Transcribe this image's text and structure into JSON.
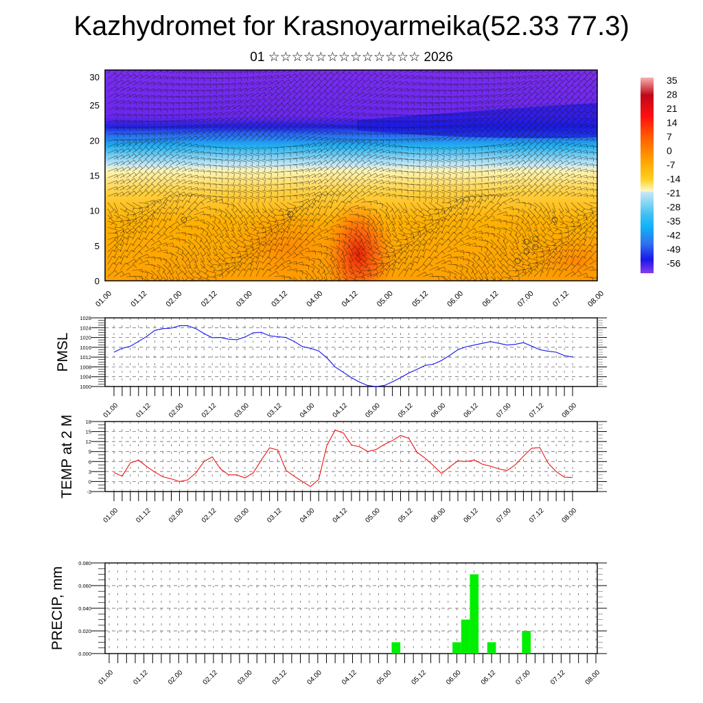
{
  "title": "Kazhydromet for Krasnoyarmeika(52.33 77.3)",
  "subtitle": "01 ☆☆☆☆☆☆☆☆☆☆☆☆☆ 2026",
  "time_labels": [
    "01.00",
    "01.12",
    "02.00",
    "02.12",
    "03.00",
    "03.12",
    "04.00",
    "04.12",
    "05.00",
    "05.12",
    "06.00",
    "06.12",
    "07.00",
    "07.12",
    "08.00"
  ],
  "chart_data": [
    {
      "type": "heatmap",
      "name": "vertical cross-section temperature with wind barbs",
      "ylabel": "",
      "ylim": [
        0,
        30
      ],
      "yticks": [
        0,
        5,
        10,
        15,
        20,
        25,
        30
      ],
      "xticks": [
        "01.00",
        "01.12",
        "02.00",
        "02.12",
        "03.00",
        "03.12",
        "04.00",
        "04.12",
        "05.00",
        "05.12",
        "06.00",
        "06.12",
        "07.00",
        "07.12",
        "08.00"
      ],
      "colorbar": {
        "labels": [
          "35",
          "28",
          "21",
          "14",
          "7",
          "0",
          "-7",
          "-14",
          "-21",
          "-28",
          "-35",
          "-42",
          "-49",
          "-56"
        ],
        "colors": [
          "#f4a0a0",
          "#c80018",
          "#e81010",
          "#ff3010",
          "#ff6a00",
          "#ffa000",
          "#ffd040",
          "#fff8c0",
          "#b8e0f0",
          "#60c8f0",
          "#10b8f8",
          "#3080f0",
          "#2040e8",
          "#7028f0"
        ]
      }
    },
    {
      "type": "line",
      "name": "PMSL",
      "ylabel": "PMSL",
      "ylim": [
        1000,
        1028
      ],
      "yticks": [
        1000,
        1004,
        1008,
        1012,
        1016,
        1020,
        1024,
        1028
      ],
      "ytick_labels": [
        "1000",
        "1004",
        "1008",
        "1012",
        "1016",
        "1020",
        "1024",
        "1028"
      ],
      "color": "#1010ee",
      "step_hours": 3,
      "values": [
        1014.0,
        1015.6,
        1016.4,
        1018.4,
        1020.4,
        1022.9,
        1023.6,
        1023.8,
        1024.8,
        1024.8,
        1023.6,
        1021.6,
        1019.9,
        1020.0,
        1019.3,
        1019.1,
        1020.2,
        1021.9,
        1022.1,
        1020.7,
        1020.3,
        1020.0,
        1018.4,
        1016.3,
        1015.6,
        1014.5,
        1011.7,
        1008.0,
        1005.8,
        1003.6,
        1001.8,
        1000.4,
        1000.0,
        1000.4,
        1001.9,
        1003.6,
        1005.5,
        1007.0,
        1008.6,
        1009.1,
        1010.6,
        1012.7,
        1015.0,
        1016.2,
        1016.9,
        1017.6,
        1018.3,
        1017.6,
        1016.9,
        1017.2,
        1017.9,
        1016.5,
        1015.0,
        1014.4,
        1014.0,
        1012.6,
        1012.0
      ]
    },
    {
      "type": "line",
      "name": "TEMP at 2 M",
      "ylabel": "TEMP at 2 M",
      "ylim": [
        -3,
        18
      ],
      "yticks": [
        -3,
        0,
        3,
        6,
        9,
        12,
        15,
        18
      ],
      "ytick_labels": [
        "-3",
        "0",
        "3",
        "6",
        "9",
        "12",
        "15",
        "18"
      ],
      "color": "#ee1010",
      "step_hours": 3,
      "values": [
        2.7,
        1.6,
        5.6,
        6.4,
        4.5,
        2.8,
        1.4,
        0.8,
        0.0,
        0.5,
        2.6,
        6.0,
        7.4,
        3.8,
        2.0,
        2.0,
        1.1,
        2.6,
        6.5,
        10.1,
        9.5,
        3.4,
        1.6,
        0.0,
        -1.5,
        0.6,
        10.8,
        15.4,
        14.6,
        11.0,
        10.4,
        9.0,
        9.6,
        11.1,
        12.3,
        13.8,
        13.0,
        8.8,
        7.0,
        4.8,
        2.4,
        4.4,
        6.2,
        6.0,
        6.5,
        5.2,
        4.6,
        3.8,
        3.3,
        5.0,
        7.6,
        10.0,
        10.2,
        5.6,
        3.0,
        1.3,
        1.2
      ]
    },
    {
      "type": "bar",
      "name": "PRECIP, mm",
      "ylabel": "PRECIP, mm",
      "ylim": [
        0,
        0.08
      ],
      "yticks": [
        0,
        0.02,
        0.04,
        0.06,
        0.08
      ],
      "ytick_labels": [
        "0.000",
        "0.020",
        "0.040",
        "0.060",
        "0.080"
      ],
      "color": "#00ee00",
      "step_hours": 3,
      "bars": [
        {
          "time": "05.03",
          "index": 33,
          "value": 0.01
        },
        {
          "time": "06.00",
          "index": 40,
          "value": 0.01
        },
        {
          "time": "06.03",
          "index": 41,
          "value": 0.03
        },
        {
          "time": "06.06",
          "index": 42,
          "value": 0.07
        },
        {
          "time": "06.12",
          "index": 44,
          "value": 0.01
        },
        {
          "time": "07.00",
          "index": 48,
          "value": 0.02
        }
      ]
    }
  ]
}
